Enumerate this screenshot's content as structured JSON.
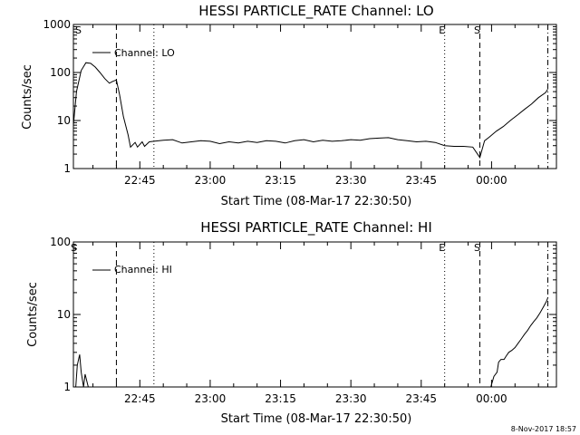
{
  "timestamp": "8-Nov-2017 18:57",
  "chart_data": [
    {
      "type": "line",
      "title": "HESSI PARTICLE_RATE Channel: LO",
      "xlabel": "Start Time (08-Mar-17 22:30:50)",
      "ylabel": "Counts/sec",
      "yscale": "log",
      "xlim": [
        "22:30:50",
        "00:13:50"
      ],
      "ylim": [
        1,
        1000
      ],
      "x_ticks": [
        "22:45",
        "23:00",
        "23:15",
        "23:30",
        "23:45",
        "00:00"
      ],
      "y_ticks": [
        "1",
        "10",
        "100",
        "1000"
      ],
      "legend": {
        "position": "top-left",
        "entries": [
          "Channel: LO"
        ]
      },
      "markers": [
        {
          "label": "S",
          "time": "22:30:50",
          "style": "dashdot"
        },
        {
          "label": "",
          "time": "22:40:00",
          "style": "dashed"
        },
        {
          "label": "",
          "time": "22:48:00",
          "style": "dotted"
        },
        {
          "label": "E",
          "time": "23:50:00",
          "style": "dotted"
        },
        {
          "label": "S",
          "time": "23:57:30",
          "style": "dashed"
        },
        {
          "label": "",
          "time": "00:12:00",
          "style": "dashdot"
        }
      ],
      "series": [
        {
          "x": [
            "22:30:50",
            "22:31:30",
            "22:32:30",
            "22:33:30",
            "22:34:30",
            "22:35:30",
            "22:36:30",
            "22:37:30",
            "22:38:30",
            "22:39:10",
            "22:40:00",
            "22:40:40",
            "22:41:30",
            "22:42:30",
            "22:43:00",
            "22:44:00",
            "22:44:30",
            "22:45:30",
            "22:46:00",
            "22:47:00",
            "22:48:00",
            "22:50:00",
            "22:52:00",
            "22:54:00",
            "22:56:00",
            "22:58:00",
            "23:00:00",
            "23:02:00",
            "23:04:00",
            "23:06:00",
            "23:08:00",
            "23:10:00",
            "23:12:00",
            "23:14:00",
            "23:16:00",
            "23:18:00",
            "23:20:00",
            "23:22:00",
            "23:24:00",
            "23:26:00",
            "23:28:00",
            "23:30:00",
            "23:32:00",
            "23:34:00",
            "23:36:00",
            "23:38:00",
            "23:40:00",
            "23:42:00",
            "23:44:00",
            "23:46:00",
            "23:48:00",
            "23:50:00",
            "23:52:00",
            "23:54:00",
            "23:56:00",
            "23:57:30",
            "23:58:30",
            "23:59:30",
            "00:01:00",
            "00:02:30",
            "00:04:00",
            "00:05:30",
            "00:07:00",
            "00:08:30",
            "00:10:00",
            "00:11:30",
            "00:12:00"
          ],
          "values": [
            8,
            40,
            110,
            160,
            155,
            130,
            100,
            75,
            60,
            65,
            70,
            35,
            12,
            5,
            2.8,
            3.5,
            2.8,
            3.6,
            2.9,
            3.6,
            3.7,
            3.9,
            4.0,
            3.4,
            3.6,
            3.8,
            3.7,
            3.3,
            3.6,
            3.4,
            3.7,
            3.5,
            3.8,
            3.7,
            3.4,
            3.8,
            4.0,
            3.6,
            3.9,
            3.7,
            3.8,
            4.0,
            3.9,
            4.2,
            4.3,
            4.4,
            4.0,
            3.8,
            3.6,
            3.7,
            3.5,
            3.0,
            2.9,
            2.9,
            2.8,
            1.7,
            3.8,
            4.5,
            6,
            7.5,
            10,
            13,
            17,
            22,
            30,
            38,
            45
          ]
        }
      ]
    },
    {
      "type": "line",
      "title": "HESSI PARTICLE_RATE Channel: HI",
      "xlabel": "Start Time (08-Mar-17 22:30:50)",
      "ylabel": "Counts/sec",
      "yscale": "log",
      "xlim": [
        "22:30:50",
        "00:13:50"
      ],
      "ylim": [
        1,
        100
      ],
      "x_ticks": [
        "22:45",
        "23:00",
        "23:15",
        "23:30",
        "23:45",
        "00:00"
      ],
      "y_ticks": [
        "1",
        "10",
        "100"
      ],
      "legend": {
        "position": "top-left",
        "entries": [
          "Channel: HI"
        ]
      },
      "markers": [
        {
          "label": "S",
          "time": "22:30:50",
          "style": "dashdot"
        },
        {
          "label": "",
          "time": "22:40:00",
          "style": "dashed"
        },
        {
          "label": "",
          "time": "22:48:00",
          "style": "dotted"
        },
        {
          "label": "E",
          "time": "23:50:00",
          "style": "dotted"
        },
        {
          "label": "S",
          "time": "23:57:30",
          "style": "dashed"
        },
        {
          "label": "",
          "time": "00:12:00",
          "style": "dashdot"
        }
      ],
      "series": [
        {
          "x": [
            "22:31:20",
            "22:31:40",
            "22:32:10",
            "22:32:30",
            "22:33:00",
            "22:33:20",
            "22:34:00",
            "23:59:50",
            "00:00:30",
            "00:01:10",
            "00:01:30",
            "00:02:00",
            "00:02:40",
            "00:03:10",
            "00:03:40",
            "00:04:20",
            "00:05:00",
            "00:05:40",
            "00:06:20",
            "00:07:00",
            "00:07:40",
            "00:08:20",
            "00:09:00",
            "00:09:40",
            "00:10:20",
            "00:11:00",
            "00:11:40",
            "00:12:00"
          ],
          "values": [
            1,
            2,
            2.8,
            1.6,
            1,
            1.5,
            1,
            1,
            1.4,
            1.6,
            2.2,
            2.4,
            2.4,
            2.7,
            3,
            3.2,
            3.5,
            4,
            4.6,
            5.3,
            6,
            7,
            8,
            9,
            10.5,
            12.5,
            15,
            17
          ]
        }
      ]
    }
  ]
}
